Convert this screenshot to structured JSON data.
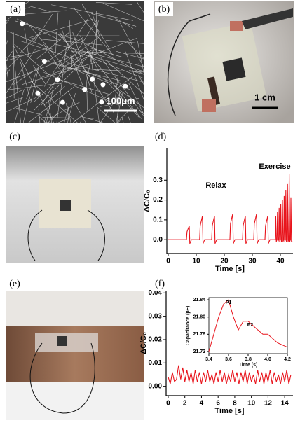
{
  "panels": [
    {
      "label": "(a)",
      "scale_bar": "100μm"
    },
    {
      "label": "(b)",
      "scale_bar": "1 cm"
    },
    {
      "label": "(c)"
    },
    {
      "label": "(e)"
    }
  ],
  "chart_data": [
    {
      "type": "line",
      "label": "(d)",
      "annotations": [
        "Relax",
        "Exercise"
      ],
      "x_label": "Time [s]",
      "y_label": "ΔC/C₀",
      "color": "#e8141c",
      "x": [
        0,
        6.5,
        6.7,
        7.5,
        7.7,
        8.3,
        11.2,
        11.4,
        12.2,
        12.4,
        13,
        15.5,
        15.7,
        16.5,
        16.7,
        17.3,
        22,
        22.2,
        23,
        23.2,
        23.8,
        26.5,
        26.7,
        27.5,
        27.7,
        28.3,
        30.5,
        30.7,
        31.5,
        31.7,
        32.3,
        34.5,
        34.7,
        35.5,
        35.7,
        36.3,
        38.2,
        38.35,
        38.55,
        38.8,
        38.95,
        39.15,
        39.4,
        39.55,
        39.75,
        40,
        40.15,
        40.35,
        40.6,
        40.75,
        40.95,
        41.2,
        41.35,
        41.55,
        41.8,
        41.95,
        42.15,
        42.4,
        42.55,
        42.75,
        43,
        43.15,
        43.35,
        43.6,
        43.75,
        43.95,
        44.3
      ],
      "values": [
        0,
        0,
        0.04,
        0.07,
        -0.02,
        0,
        0,
        0.07,
        0.12,
        -0.02,
        0,
        0,
        0.07,
        0.12,
        -0.02,
        0,
        0,
        0.08,
        0.13,
        -0.02,
        0,
        0,
        0.07,
        0.12,
        -0.02,
        0,
        0,
        0.08,
        0.13,
        -0.02,
        0,
        0,
        0.07,
        0.12,
        -0.02,
        0,
        0,
        0.12,
        -0.01,
        0,
        0.14,
        -0.01,
        0,
        0.16,
        -0.01,
        0,
        0.18,
        -0.01,
        0,
        0.2,
        -0.01,
        0,
        0.22,
        -0.01,
        0,
        0.25,
        -0.01,
        0,
        0.28,
        -0.01,
        0,
        0.33,
        -0.01,
        0,
        0.21,
        -0.01,
        -0.01
      ],
      "xlim": [
        -0.5,
        44.5
      ],
      "xticks": [
        0,
        10,
        20,
        30,
        40
      ],
      "ylim": [
        -0.07,
        0.46
      ],
      "yticks": [
        {
          "value": 0,
          "label": "0.0"
        },
        0.1,
        0.2,
        0.3
      ]
    },
    {
      "type": "line",
      "label": "(f)",
      "x_label": "Time [s]",
      "y_label": "ΔC/C₀",
      "color": "#e8141c",
      "x": [
        0,
        0.25,
        0.5,
        0.75,
        1,
        1.25,
        1.5,
        1.75,
        2,
        2.25,
        2.5,
        2.75,
        3,
        3.25,
        3.5,
        3.75,
        4,
        4.25,
        4.5,
        4.75,
        5,
        5.25,
        5.5,
        5.75,
        6,
        6.25,
        6.5,
        6.75,
        7,
        7.25,
        7.5,
        7.75,
        8,
        8.25,
        8.5,
        8.75,
        9,
        9.25,
        9.5,
        9.75,
        10,
        10.25,
        10.5,
        10.75,
        11,
        11.25,
        11.5,
        11.75,
        12,
        12.25,
        12.5,
        12.75,
        13,
        13.25,
        13.5,
        13.75,
        14,
        14.25,
        14.5,
        14.75
      ],
      "values": [
        0.004,
        0.001,
        0.006,
        0.002,
        0.003,
        0.009,
        0.003,
        0.008,
        0.002,
        0.007,
        0.002,
        0.006,
        0.001,
        0.007,
        0.002,
        0.006,
        0.001,
        0.006,
        0.002,
        0.007,
        0.002,
        0.005,
        0.001,
        0.006,
        0.002,
        0.007,
        0.002,
        0.006,
        0.001,
        0.005,
        0.002,
        0.007,
        0.002,
        0.006,
        0.001,
        0.006,
        0.002,
        0.007,
        0.001,
        0.006,
        0.002,
        0.005,
        0.001,
        0.007,
        0.002,
        0.006,
        0.001,
        0.006,
        0.002,
        0.007,
        0.001,
        0.006,
        0.002,
        0.005,
        0.001,
        0.006,
        0.002,
        0.007,
        0.001,
        0.005
      ],
      "xlim": [
        -0.25,
        15
      ],
      "xticks": [
        0,
        2,
        4,
        6,
        8,
        10,
        12,
        14
      ],
      "ylim": [
        -0.004,
        0.041
      ],
      "yticks": [
        {
          "value": 0,
          "label": "0.00"
        },
        0.01,
        0.02,
        0.03,
        0.04
      ]
    },
    {
      "type": "line",
      "annotations": [
        "P1",
        "P2"
      ],
      "x_label": "Time (s)",
      "y_label": "Capacitance (pF)",
      "color": "#e8141c",
      "x": [
        3.4,
        3.45,
        3.5,
        3.55,
        3.6,
        3.65,
        3.7,
        3.75,
        3.8,
        3.85,
        3.9,
        3.95,
        4.0,
        4.1,
        4.2
      ],
      "values": [
        21.72,
        21.76,
        21.8,
        21.83,
        21.84,
        21.8,
        21.77,
        21.79,
        21.79,
        21.78,
        21.77,
        21.76,
        21.76,
        21.74,
        21.73
      ],
      "xlim": [
        3.4,
        4.2
      ],
      "xticks": [
        3.4,
        3.6,
        3.8,
        {
          "value": 4,
          "label": "4.0"
        },
        4.2
      ],
      "ylim": [
        21.715,
        21.845
      ],
      "yticks": [
        21.72,
        21.76,
        {
          "value": 21.8,
          "label": "21.80"
        },
        21.84
      ]
    }
  ]
}
